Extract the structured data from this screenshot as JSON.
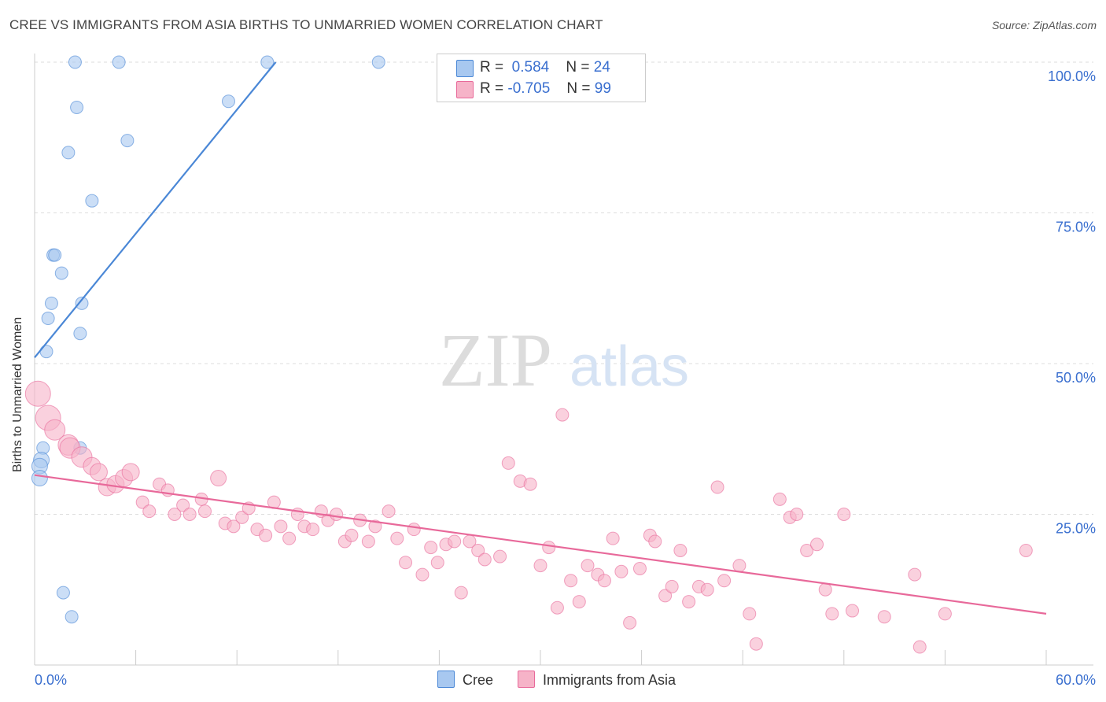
{
  "title": "CREE VS IMMIGRANTS FROM ASIA BIRTHS TO UNMARRIED WOMEN CORRELATION CHART",
  "source": "Source: ZipAtlas.com",
  "watermark": {
    "zip": "ZIP",
    "atlas": "atlas"
  },
  "legend": {
    "r_label": "R =",
    "n_label": "N =",
    "rows": [
      {
        "r": "0.584",
        "n": "24",
        "color": "#a8c8f0"
      },
      {
        "r": "-0.705",
        "n": "99",
        "color": "#f6b3c8"
      }
    ]
  },
  "bottom_legend": [
    {
      "label": "Cree",
      "color": "#a8c8f0"
    },
    {
      "label": "Immigrants from Asia",
      "color": "#f6b3c8"
    }
  ],
  "chart_data": {
    "type": "scatter",
    "title": "CREE VS IMMIGRANTS FROM ASIA BIRTHS TO UNMARRIED WOMEN CORRELATION CHART",
    "xlabel": "",
    "ylabel": "Births to Unmarried Women",
    "xlim": [
      0,
      60
    ],
    "ylim": [
      0,
      100
    ],
    "x_tick_labels": [
      "0.0%",
      "60.0%"
    ],
    "y_tick_labels": [
      "100.0%",
      "75.0%",
      "50.0%",
      "25.0%"
    ],
    "y_ticks": [
      100,
      75,
      50,
      25
    ],
    "grid": true,
    "colors": {
      "cree": "#4a87d6",
      "asia": "#e8699a",
      "cree_fill": "#a8c8f0",
      "asia_fill": "#f6b3c8",
      "tick_label": "#3a6fcf"
    },
    "series": [
      {
        "name": "Cree",
        "trend": {
          "x": [
            0.0,
            14.3
          ],
          "y": [
            51.0,
            100.0
          ]
        },
        "points": [
          {
            "x": 2.4,
            "y": 100.0
          },
          {
            "x": 5.0,
            "y": 100.0
          },
          {
            "x": 13.8,
            "y": 100.0
          },
          {
            "x": 20.4,
            "y": 100.0
          },
          {
            "x": 2.5,
            "y": 92.5
          },
          {
            "x": 11.5,
            "y": 93.5
          },
          {
            "x": 5.5,
            "y": 87.0
          },
          {
            "x": 2.0,
            "y": 85.0
          },
          {
            "x": 3.4,
            "y": 77.0
          },
          {
            "x": 1.1,
            "y": 68.0
          },
          {
            "x": 1.2,
            "y": 68.0
          },
          {
            "x": 1.6,
            "y": 65.0
          },
          {
            "x": 1.0,
            "y": 60.0
          },
          {
            "x": 2.8,
            "y": 60.0
          },
          {
            "x": 0.8,
            "y": 57.5
          },
          {
            "x": 2.7,
            "y": 55.0
          },
          {
            "x": 0.7,
            "y": 52.0
          },
          {
            "x": 0.5,
            "y": 36.0
          },
          {
            "x": 2.7,
            "y": 36.0
          },
          {
            "x": 0.4,
            "y": 34.0
          },
          {
            "x": 0.3,
            "y": 33.0
          },
          {
            "x": 0.3,
            "y": 31.0
          },
          {
            "x": 1.7,
            "y": 12.0
          },
          {
            "x": 2.2,
            "y": 8.0
          }
        ]
      },
      {
        "name": "Immigrants from Asia",
        "trend": {
          "x": [
            0.0,
            60.0
          ],
          "y": [
            31.5,
            8.5
          ]
        },
        "points": [
          {
            "x": 0.2,
            "y": 45.0
          },
          {
            "x": 0.8,
            "y": 41.0
          },
          {
            "x": 1.2,
            "y": 39.0
          },
          {
            "x": 2.0,
            "y": 36.5
          },
          {
            "x": 2.1,
            "y": 36.0
          },
          {
            "x": 2.8,
            "y": 34.5
          },
          {
            "x": 3.4,
            "y": 33.0
          },
          {
            "x": 3.8,
            "y": 32.0
          },
          {
            "x": 4.3,
            "y": 29.5
          },
          {
            "x": 4.8,
            "y": 30.0
          },
          {
            "x": 5.3,
            "y": 31.0
          },
          {
            "x": 5.7,
            "y": 32.0
          },
          {
            "x": 6.4,
            "y": 27.0
          },
          {
            "x": 6.8,
            "y": 25.5
          },
          {
            "x": 7.4,
            "y": 30.0
          },
          {
            "x": 7.9,
            "y": 29.0
          },
          {
            "x": 8.3,
            "y": 25.0
          },
          {
            "x": 8.8,
            "y": 26.5
          },
          {
            "x": 9.2,
            "y": 25.0
          },
          {
            "x": 9.9,
            "y": 27.5
          },
          {
            "x": 10.1,
            "y": 25.5
          },
          {
            "x": 10.9,
            "y": 31.0
          },
          {
            "x": 11.3,
            "y": 23.5
          },
          {
            "x": 11.8,
            "y": 23.0
          },
          {
            "x": 12.3,
            "y": 24.5
          },
          {
            "x": 12.7,
            "y": 26.0
          },
          {
            "x": 13.2,
            "y": 22.5
          },
          {
            "x": 13.7,
            "y": 21.5
          },
          {
            "x": 14.2,
            "y": 27.0
          },
          {
            "x": 14.6,
            "y": 23.0
          },
          {
            "x": 15.1,
            "y": 21.0
          },
          {
            "x": 15.6,
            "y": 25.0
          },
          {
            "x": 16.0,
            "y": 23.0
          },
          {
            "x": 16.5,
            "y": 22.5
          },
          {
            "x": 17.0,
            "y": 25.5
          },
          {
            "x": 17.4,
            "y": 24.0
          },
          {
            "x": 17.9,
            "y": 25.0
          },
          {
            "x": 18.4,
            "y": 20.5
          },
          {
            "x": 18.8,
            "y": 21.5
          },
          {
            "x": 19.3,
            "y": 24.0
          },
          {
            "x": 19.8,
            "y": 20.5
          },
          {
            "x": 20.2,
            "y": 23.0
          },
          {
            "x": 21.0,
            "y": 25.5
          },
          {
            "x": 21.5,
            "y": 21.0
          },
          {
            "x": 22.0,
            "y": 17.0
          },
          {
            "x": 22.5,
            "y": 22.5
          },
          {
            "x": 23.0,
            "y": 15.0
          },
          {
            "x": 23.5,
            "y": 19.5
          },
          {
            "x": 23.9,
            "y": 17.0
          },
          {
            "x": 24.4,
            "y": 20.0
          },
          {
            "x": 24.9,
            "y": 20.5
          },
          {
            "x": 25.3,
            "y": 12.0
          },
          {
            "x": 25.8,
            "y": 20.5
          },
          {
            "x": 26.3,
            "y": 19.0
          },
          {
            "x": 26.7,
            "y": 17.5
          },
          {
            "x": 27.6,
            "y": 18.0
          },
          {
            "x": 28.1,
            "y": 33.5
          },
          {
            "x": 28.8,
            "y": 30.5
          },
          {
            "x": 29.4,
            "y": 30.0
          },
          {
            "x": 30.0,
            "y": 16.5
          },
          {
            "x": 30.5,
            "y": 19.5
          },
          {
            "x": 31.0,
            "y": 9.5
          },
          {
            "x": 31.3,
            "y": 41.5
          },
          {
            "x": 31.8,
            "y": 14.0
          },
          {
            "x": 32.3,
            "y": 10.5
          },
          {
            "x": 32.8,
            "y": 16.5
          },
          {
            "x": 33.4,
            "y": 15.0
          },
          {
            "x": 33.8,
            "y": 14.0
          },
          {
            "x": 34.3,
            "y": 21.0
          },
          {
            "x": 34.8,
            "y": 15.5
          },
          {
            "x": 35.3,
            "y": 7.0
          },
          {
            "x": 35.9,
            "y": 16.0
          },
          {
            "x": 36.5,
            "y": 21.5
          },
          {
            "x": 36.8,
            "y": 20.5
          },
          {
            "x": 37.4,
            "y": 11.5
          },
          {
            "x": 37.8,
            "y": 13.0
          },
          {
            "x": 38.3,
            "y": 19.0
          },
          {
            "x": 38.8,
            "y": 10.5
          },
          {
            "x": 39.4,
            "y": 13.0
          },
          {
            "x": 39.9,
            "y": 12.5
          },
          {
            "x": 40.5,
            "y": 29.5
          },
          {
            "x": 40.9,
            "y": 14.0
          },
          {
            "x": 41.8,
            "y": 16.5
          },
          {
            "x": 42.4,
            "y": 8.5
          },
          {
            "x": 42.8,
            "y": 3.5
          },
          {
            "x": 44.2,
            "y": 27.5
          },
          {
            "x": 44.8,
            "y": 24.5
          },
          {
            "x": 45.2,
            "y": 25.0
          },
          {
            "x": 45.8,
            "y": 19.0
          },
          {
            "x": 46.4,
            "y": 20.0
          },
          {
            "x": 46.9,
            "y": 12.5
          },
          {
            "x": 47.3,
            "y": 8.5
          },
          {
            "x": 48.0,
            "y": 25.0
          },
          {
            "x": 48.5,
            "y": 9.0
          },
          {
            "x": 50.4,
            "y": 8.0
          },
          {
            "x": 52.2,
            "y": 15.0
          },
          {
            "x": 52.5,
            "y": 3.0
          },
          {
            "x": 54.0,
            "y": 8.5
          },
          {
            "x": 58.8,
            "y": 19.0
          }
        ]
      }
    ]
  }
}
